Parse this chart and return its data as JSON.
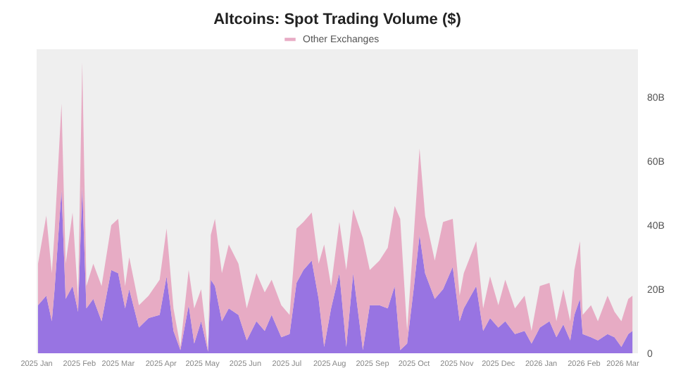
{
  "chart_data": {
    "type": "area",
    "title": "Altcoins: Spot Trading Volume ($)",
    "stacked": true,
    "legend": "top",
    "grid": false,
    "tick_labels": true,
    "x": [
      "2025-01-02",
      "2025-01-08",
      "2025-01-12",
      "2025-01-14",
      "2025-01-19",
      "2025-01-22",
      "2025-01-27",
      "2025-01-31",
      "2025-02-03",
      "2025-02-06",
      "2025-02-11",
      "2025-02-17",
      "2025-02-24",
      "2025-03-01",
      "2025-03-06",
      "2025-03-09",
      "2025-03-16",
      "2025-03-23",
      "2025-03-31",
      "2025-04-05",
      "2025-04-10",
      "2025-04-15",
      "2025-04-21",
      "2025-04-25",
      "2025-04-30",
      "2025-05-05",
      "2025-05-07",
      "2025-05-10",
      "2025-05-15",
      "2025-05-20",
      "2025-05-27",
      "2025-06-02",
      "2025-06-09",
      "2025-06-15",
      "2025-06-20",
      "2025-06-27",
      "2025-07-03",
      "2025-07-08",
      "2025-07-13",
      "2025-07-19",
      "2025-07-24",
      "2025-07-28",
      "2025-08-02",
      "2025-08-08",
      "2025-08-13",
      "2025-08-18",
      "2025-08-25",
      "2025-08-30",
      "2025-09-06",
      "2025-09-12",
      "2025-09-17",
      "2025-09-21",
      "2025-09-26",
      "2025-10-01",
      "2025-10-05",
      "2025-10-09",
      "2025-10-16",
      "2025-10-22",
      "2025-10-29",
      "2025-11-03",
      "2025-11-06",
      "2025-11-15",
      "2025-11-20",
      "2025-11-25",
      "2025-12-01",
      "2025-12-06",
      "2025-12-13",
      "2025-12-20",
      "2025-12-25",
      "2025-12-31",
      "2026-01-07",
      "2026-01-12",
      "2026-01-17",
      "2026-01-22",
      "2026-01-25",
      "2026-01-29",
      "2026-01-31",
      "2026-02-06",
      "2026-02-11",
      "2026-02-18",
      "2026-02-23",
      "2026-02-28",
      "2026-03-05",
      "2026-03-08"
    ],
    "series": [
      {
        "color": "#8e66e0",
        "values": [
          15,
          18,
          10,
          20,
          51,
          17,
          21,
          13,
          52,
          14,
          17,
          10,
          26,
          25,
          14,
          20,
          8,
          11,
          12,
          24,
          7,
          1,
          15,
          3,
          10,
          0.5,
          23,
          21,
          10,
          14,
          12,
          4,
          10,
          7,
          12,
          5,
          6,
          22,
          26,
          29,
          17,
          2,
          14,
          25,
          2,
          25,
          1,
          15,
          15,
          14,
          21,
          1,
          3,
          21,
          37,
          25,
          17,
          20,
          27,
          10,
          14,
          21,
          7,
          11,
          8,
          10,
          6,
          7,
          3,
          8,
          10,
          5,
          9,
          4,
          12,
          17,
          6,
          5,
          4,
          6,
          5,
          2,
          6,
          7
        ]
      },
      {
        "name": "Other Exchanges",
        "color": "#e6a3bf",
        "values": [
          13,
          25,
          15,
          18,
          27,
          11,
          23,
          4,
          39,
          7,
          11,
          11,
          14,
          17,
          7,
          10,
          7,
          7,
          11,
          15,
          7,
          1,
          11,
          11,
          10,
          0.5,
          14,
          21,
          15,
          20,
          16,
          10,
          15,
          12,
          11,
          10,
          6,
          17,
          15,
          15,
          11,
          32,
          7,
          16,
          24,
          20,
          35,
          11,
          14,
          19,
          25,
          41,
          4,
          17,
          27,
          18,
          12,
          21,
          15,
          8,
          11,
          14,
          7,
          13,
          7,
          13,
          8,
          11,
          4,
          13,
          12,
          5,
          11,
          6,
          14,
          18,
          6,
          10,
          6,
          12,
          8,
          8,
          11,
          11
        ]
      }
    ],
    "xlim": [
      "2025-01-01",
      "2026-03-12"
    ],
    "xticks": [
      {
        "value": "2025-01-01",
        "label": "2025 Jan"
      },
      {
        "value": "2025-02-01",
        "label": "2025 Feb"
      },
      {
        "value": "2025-03-01",
        "label": "2025 Mar"
      },
      {
        "value": "2025-04-01",
        "label": "2025 Apr"
      },
      {
        "value": "2025-05-01",
        "label": "2025 May"
      },
      {
        "value": "2025-06-01",
        "label": "2025 Jun"
      },
      {
        "value": "2025-07-01",
        "label": "2025 Jul"
      },
      {
        "value": "2025-08-01",
        "label": "2025 Aug"
      },
      {
        "value": "2025-09-01",
        "label": "2025 Sep"
      },
      {
        "value": "2025-10-01",
        "label": "2025 Oct"
      },
      {
        "value": "2025-11-01",
        "label": "2025 Nov"
      },
      {
        "value": "2025-12-01",
        "label": "2025 Dec"
      },
      {
        "value": "2026-01-01",
        "label": "2026 Jan"
      },
      {
        "value": "2026-02-01",
        "label": "2026 Feb"
      },
      {
        "value": "2026-03-01",
        "label": "2026 Mar"
      }
    ],
    "ylim": [
      0,
      95
    ],
    "yticks": [
      0,
      {
        "value": 20,
        "label": "20B"
      },
      {
        "value": 40,
        "label": "40B"
      },
      {
        "value": 60,
        "label": "60B"
      },
      {
        "value": 80,
        "label": "80B"
      }
    ]
  }
}
